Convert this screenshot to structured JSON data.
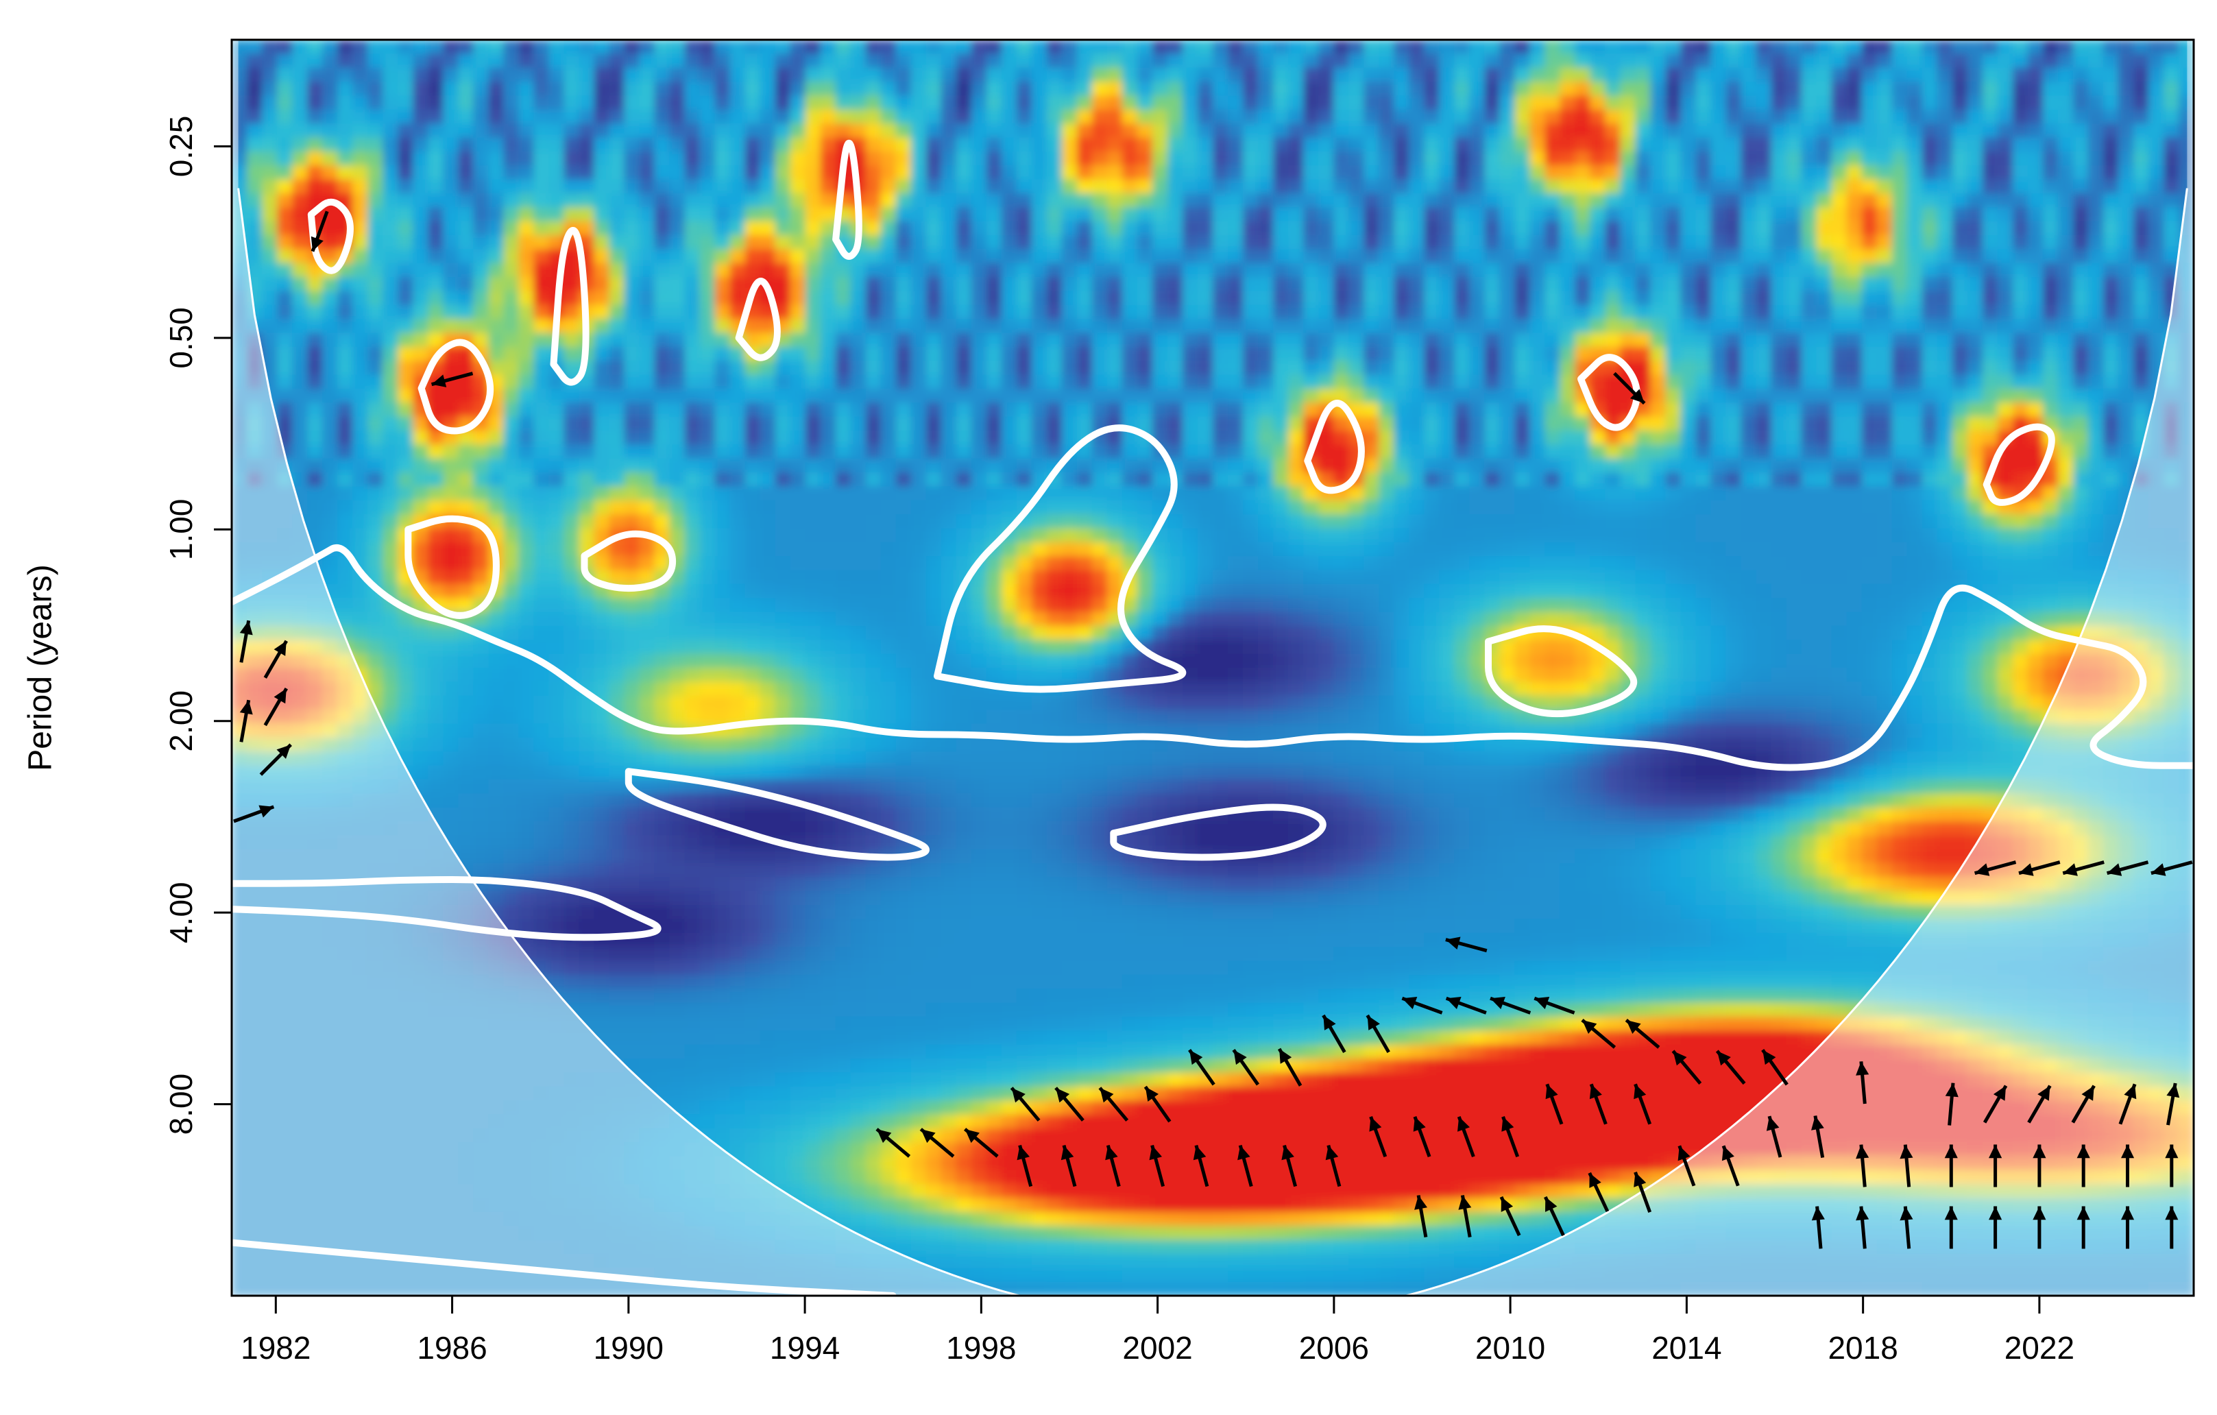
{
  "chart_data": {
    "type": "heatmap",
    "title": "",
    "xlabel": "",
    "ylabel": "Period (years)",
    "x_ticks": [
      1982,
      1986,
      1990,
      1994,
      1998,
      2002,
      2006,
      2010,
      2014,
      2018,
      2022
    ],
    "y_ticks": [
      {
        "period": 0.25,
        "label": "0.25"
      },
      {
        "period": 0.5,
        "label": "0.50"
      },
      {
        "period": 1,
        "label": "1.00"
      },
      {
        "period": 2,
        "label": "2.00"
      },
      {
        "period": 4,
        "label": "4.00"
      },
      {
        "period": 8,
        "label": "8.00"
      }
    ],
    "xlim": [
      1981,
      2025.5
    ],
    "ylim": [
      0.17,
      16
    ],
    "y_scale": "log2",
    "y_reversed": true,
    "colormap": [
      "#2b2c88",
      "#3c4fa6",
      "#17a5dd",
      "#31c1d6",
      "#7fd07c",
      "#ffe21a",
      "#ffa21c",
      "#f4531e",
      "#e7231e"
    ],
    "cone_color": "#ffffff",
    "outside_cone_fade": "rgba(255,255,255,0.45)",
    "significance_contour_color": "#ffffff",
    "arrow_color": "#000000",
    "hotspots": [
      {
        "t": 2007,
        "p": 9.0,
        "power": 1.0
      },
      {
        "t": 2002,
        "p": 10.0,
        "power": 0.95
      },
      {
        "t": 2012,
        "p": 8.0,
        "power": 0.9
      },
      {
        "t": 2016,
        "p": 7.0,
        "power": 0.75
      },
      {
        "t": 2022,
        "p": 9.0,
        "power": 0.7
      },
      {
        "t": 1982,
        "p": 1.8,
        "power": 0.75
      },
      {
        "t": 2020,
        "p": 3.2,
        "power": 0.75
      },
      {
        "t": 2000,
        "p": 1.25,
        "power": 0.8
      },
      {
        "t": 1986,
        "p": 0.6,
        "power": 0.95
      },
      {
        "t": 2012.5,
        "p": 0.6,
        "power": 0.9
      },
      {
        "t": 2021.5,
        "p": 0.78,
        "power": 0.9
      },
      {
        "t": 2006,
        "p": 0.75,
        "power": 0.85
      },
      {
        "t": 1986,
        "p": 1.1,
        "power": 0.8
      },
      {
        "t": 1990,
        "p": 1.05,
        "power": 0.65
      },
      {
        "t": 1983,
        "p": 0.32,
        "power": 0.9
      },
      {
        "t": 1988.5,
        "p": 0.4,
        "power": 0.9
      },
      {
        "t": 1993,
        "p": 0.42,
        "power": 0.85
      },
      {
        "t": 1995,
        "p": 0.27,
        "power": 0.85
      },
      {
        "t": 2001,
        "p": 0.25,
        "power": 0.75
      },
      {
        "t": 2011.5,
        "p": 0.24,
        "power": 0.85
      },
      {
        "t": 2018,
        "p": 0.33,
        "power": 0.6
      },
      {
        "t": 2011,
        "p": 1.6,
        "power": 0.55
      },
      {
        "t": 2023,
        "p": 1.7,
        "power": 0.65
      },
      {
        "t": 1992,
        "p": 1.9,
        "power": 0.45
      }
    ],
    "coldspots": [
      {
        "t": 1993,
        "p": 2.9,
        "power": 0.1
      },
      {
        "t": 2004,
        "p": 3.0,
        "power": 0.1
      },
      {
        "t": 1990,
        "p": 4.2,
        "power": 0.1
      },
      {
        "t": 2003,
        "p": 1.6,
        "power": 0.15
      },
      {
        "t": 2015,
        "p": 2.4,
        "power": 0.12
      }
    ],
    "arrows": [
      {
        "t": 1996,
        "p": 9.2,
        "angle": 140
      },
      {
        "t": 1997,
        "p": 9.2,
        "angle": 140
      },
      {
        "t": 1998,
        "p": 9.2,
        "angle": 140
      },
      {
        "t": 1999,
        "p": 8.0,
        "angle": 130
      },
      {
        "t": 2000,
        "p": 8.0,
        "angle": 130
      },
      {
        "t": 2001,
        "p": 8.0,
        "angle": 130
      },
      {
        "t": 2002,
        "p": 8.0,
        "angle": 125
      },
      {
        "t": 2003,
        "p": 7.0,
        "angle": 125
      },
      {
        "t": 2004,
        "p": 7.0,
        "angle": 125
      },
      {
        "t": 2005,
        "p": 7.0,
        "angle": 120
      },
      {
        "t": 2006,
        "p": 6.2,
        "angle": 120
      },
      {
        "t": 2007,
        "p": 6.2,
        "angle": 120
      },
      {
        "t": 2008,
        "p": 5.6,
        "angle": 160
      },
      {
        "t": 2009,
        "p": 5.6,
        "angle": 160
      },
      {
        "t": 2010,
        "p": 5.6,
        "angle": 160
      },
      {
        "t": 2011,
        "p": 5.6,
        "angle": 160
      },
      {
        "t": 2012,
        "p": 6.2,
        "angle": 140
      },
      {
        "t": 2013,
        "p": 6.2,
        "angle": 140
      },
      {
        "t": 2014,
        "p": 7.0,
        "angle": 130
      },
      {
        "t": 2015,
        "p": 7.0,
        "angle": 130
      },
      {
        "t": 2016,
        "p": 7.0,
        "angle": 125
      },
      {
        "t": 1999,
        "p": 10.0,
        "angle": 105
      },
      {
        "t": 2000,
        "p": 10.0,
        "angle": 105
      },
      {
        "t": 2001,
        "p": 10.0,
        "angle": 105
      },
      {
        "t": 2002,
        "p": 10.0,
        "angle": 105
      },
      {
        "t": 2003,
        "p": 10.0,
        "angle": 105
      },
      {
        "t": 2004,
        "p": 10.0,
        "angle": 105
      },
      {
        "t": 2005,
        "p": 10.0,
        "angle": 105
      },
      {
        "t": 2006,
        "p": 10.0,
        "angle": 105
      },
      {
        "t": 2007,
        "p": 9.0,
        "angle": 110
      },
      {
        "t": 2008,
        "p": 9.0,
        "angle": 110
      },
      {
        "t": 2009,
        "p": 9.0,
        "angle": 110
      },
      {
        "t": 2010,
        "p": 9.0,
        "angle": 110
      },
      {
        "t": 2011,
        "p": 8.0,
        "angle": 110
      },
      {
        "t": 2012,
        "p": 8.0,
        "angle": 110
      },
      {
        "t": 2013,
        "p": 8.0,
        "angle": 110
      },
      {
        "t": 2008,
        "p": 12.0,
        "angle": 100
      },
      {
        "t": 2009,
        "p": 12.0,
        "angle": 100
      },
      {
        "t": 2010,
        "p": 12.0,
        "angle": 115
      },
      {
        "t": 2011,
        "p": 12.0,
        "angle": 115
      },
      {
        "t": 2012,
        "p": 11.0,
        "angle": 115
      },
      {
        "t": 2013,
        "p": 11.0,
        "angle": 110
      },
      {
        "t": 2014,
        "p": 10.0,
        "angle": 110
      },
      {
        "t": 2015,
        "p": 10.0,
        "angle": 110
      },
      {
        "t": 2016,
        "p": 9.0,
        "angle": 105
      },
      {
        "t": 2017,
        "p": 9.0,
        "angle": 100
      },
      {
        "t": 2018,
        "p": 10.0,
        "angle": 95
      },
      {
        "t": 2019,
        "p": 10.0,
        "angle": 95
      },
      {
        "t": 2020,
        "p": 10.0,
        "angle": 90
      },
      {
        "t": 2021,
        "p": 10.0,
        "angle": 90
      },
      {
        "t": 2022,
        "p": 10.0,
        "angle": 90
      },
      {
        "t": 2023,
        "p": 10.0,
        "angle": 90
      },
      {
        "t": 2024,
        "p": 10.0,
        "angle": 90
      },
      {
        "t": 2025,
        "p": 10.0,
        "angle": 90
      },
      {
        "t": 2018,
        "p": 7.4,
        "angle": 95
      },
      {
        "t": 2020,
        "p": 8.0,
        "angle": 85
      },
      {
        "t": 2021,
        "p": 8.0,
        "angle": 60
      },
      {
        "t": 2022,
        "p": 8.0,
        "angle": 60
      },
      {
        "t": 2023,
        "p": 8.0,
        "angle": 60
      },
      {
        "t": 2024,
        "p": 8.0,
        "angle": 70
      },
      {
        "t": 2025,
        "p": 8.0,
        "angle": 80
      },
      {
        "t": 2017,
        "p": 12.5,
        "angle": 95
      },
      {
        "t": 2018,
        "p": 12.5,
        "angle": 95
      },
      {
        "t": 2019,
        "p": 12.5,
        "angle": 95
      },
      {
        "t": 2020,
        "p": 12.5,
        "angle": 90
      },
      {
        "t": 2021,
        "p": 12.5,
        "angle": 90
      },
      {
        "t": 2022,
        "p": 12.5,
        "angle": 90
      },
      {
        "t": 2023,
        "p": 12.5,
        "angle": 90
      },
      {
        "t": 2024,
        "p": 12.5,
        "angle": 90
      },
      {
        "t": 2025,
        "p": 12.5,
        "angle": 90
      },
      {
        "t": 2021,
        "p": 3.4,
        "angle": 195
      },
      {
        "t": 2022,
        "p": 3.4,
        "angle": 195
      },
      {
        "t": 2023,
        "p": 3.4,
        "angle": 195
      },
      {
        "t": 2024,
        "p": 3.4,
        "angle": 195
      },
      {
        "t": 2025,
        "p": 3.4,
        "angle": 195
      },
      {
        "t": 1982,
        "p": 1.6,
        "angle": 60
      },
      {
        "t": 1982,
        "p": 1.9,
        "angle": 60
      },
      {
        "t": 1982,
        "p": 2.3,
        "angle": 45
      },
      {
        "t": 1981.5,
        "p": 2.8,
        "angle": 20
      },
      {
        "t": 1981.3,
        "p": 1.5,
        "angle": 80
      },
      {
        "t": 1981.3,
        "p": 2.0,
        "angle": 80
      },
      {
        "t": 1986,
        "p": 0.58,
        "angle": 195
      },
      {
        "t": 1983,
        "p": 0.34,
        "angle": 250
      },
      {
        "t": 2012.7,
        "p": 0.6,
        "angle": -45
      },
      {
        "t": 2009,
        "p": 4.5,
        "angle": 165
      }
    ],
    "contours": [
      [
        [
          1981,
          1.3
        ],
        [
          1982,
          1.2
        ],
        [
          1983,
          1.1
        ],
        [
          1983.5,
          1.05
        ],
        [
          1984,
          1.2
        ],
        [
          1985,
          1.35
        ],
        [
          1986,
          1.4
        ],
        [
          1987,
          1.5
        ],
        [
          1988,
          1.6
        ],
        [
          1989,
          1.8
        ],
        [
          1990,
          2.0
        ],
        [
          1991,
          2.1
        ],
        [
          1993,
          2.0
        ],
        [
          1994.5,
          2.0
        ],
        [
          1996,
          2.1
        ],
        [
          1998,
          2.1
        ],
        [
          2000,
          2.15
        ],
        [
          2002,
          2.1
        ],
        [
          2004,
          2.2
        ],
        [
          2006,
          2.1
        ],
        [
          2008,
          2.15
        ],
        [
          2010,
          2.1
        ],
        [
          2012,
          2.15
        ],
        [
          2014,
          2.2
        ],
        [
          2016,
          2.4
        ],
        [
          2018,
          2.3
        ],
        [
          2019,
          1.8
        ],
        [
          2019.5,
          1.5
        ],
        [
          2020,
          1.2
        ],
        [
          2021,
          1.3
        ],
        [
          2022,
          1.45
        ],
        [
          2023,
          1.5
        ],
        [
          2024,
          1.55
        ],
        [
          2024.5,
          1.75
        ],
        [
          2023.8,
          2.0
        ],
        [
          2023,
          2.2
        ],
        [
          2024,
          2.35
        ],
        [
          2025.5,
          2.35
        ]
      ],
      [
        [
          1981,
          3.6
        ],
        [
          1983,
          3.6
        ],
        [
          1985,
          3.55
        ],
        [
          1987,
          3.55
        ],
        [
          1989,
          3.7
        ],
        [
          1990,
          4.0
        ],
        [
          1991,
          4.3
        ],
        [
          1989,
          4.4
        ],
        [
          1987,
          4.3
        ],
        [
          1985,
          4.1
        ],
        [
          1983,
          4.0
        ],
        [
          1981,
          3.95
        ]
      ],
      [
        [
          1990,
          2.4
        ],
        [
          1992,
          2.5
        ],
        [
          1994,
          2.7
        ],
        [
          1996,
          3.0
        ],
        [
          1997,
          3.2
        ],
        [
          1996,
          3.3
        ],
        [
          1994,
          3.2
        ],
        [
          1992,
          2.9
        ],
        [
          1990,
          2.6
        ],
        [
          1990,
          2.4
        ]
      ],
      [
        [
          2001,
          3.0
        ],
        [
          2003,
          2.8
        ],
        [
          2005,
          2.7
        ],
        [
          2006,
          2.9
        ],
        [
          2005,
          3.2
        ],
        [
          2003,
          3.3
        ],
        [
          2001,
          3.2
        ],
        [
          2001,
          3.0
        ]
      ],
      [
        [
          2009.5,
          1.5
        ],
        [
          2011,
          1.4
        ],
        [
          2012.5,
          1.6
        ],
        [
          2013,
          1.8
        ],
        [
          2011,
          2.0
        ],
        [
          2009.5,
          1.8
        ],
        [
          2009.5,
          1.5
        ]
      ],
      [
        [
          1997,
          1.7
        ],
        [
          1997.5,
          1.2
        ],
        [
          1999,
          0.95
        ],
        [
          2000,
          0.75
        ],
        [
          2001,
          0.68
        ],
        [
          2002,
          0.72
        ],
        [
          2002.5,
          0.85
        ],
        [
          2002,
          1.0
        ],
        [
          2001,
          1.3
        ],
        [
          2001.5,
          1.55
        ],
        [
          2003,
          1.7
        ],
        [
          2001,
          1.75
        ],
        [
          1999,
          1.8
        ],
        [
          1997,
          1.7
        ]
      ],
      [
        [
          1985,
          1.0
        ],
        [
          1986,
          0.95
        ],
        [
          1987,
          1.0
        ],
        [
          1987,
          1.3
        ],
        [
          1986,
          1.4
        ],
        [
          1985,
          1.2
        ],
        [
          1985,
          1.0
        ]
      ],
      [
        [
          1989,
          1.1
        ],
        [
          1990,
          1.0
        ],
        [
          1991,
          1.05
        ],
        [
          1991,
          1.2
        ],
        [
          1990,
          1.25
        ],
        [
          1989,
          1.2
        ],
        [
          1989,
          1.1
        ]
      ],
      [
        [
          1985.3,
          0.6
        ],
        [
          1985.7,
          0.52
        ],
        [
          1986.4,
          0.5
        ],
        [
          1987,
          0.6
        ],
        [
          1986.5,
          0.7
        ],
        [
          1985.6,
          0.7
        ],
        [
          1985.3,
          0.6
        ]
      ],
      [
        [
          2005.4,
          0.78
        ],
        [
          2006,
          0.6
        ],
        [
          2006.7,
          0.72
        ],
        [
          2006.5,
          0.85
        ],
        [
          2005.7,
          0.88
        ],
        [
          2005.4,
          0.78
        ]
      ],
      [
        [
          2011.6,
          0.58
        ],
        [
          2012.3,
          0.52
        ],
        [
          2013,
          0.6
        ],
        [
          2012.6,
          0.7
        ],
        [
          2012,
          0.68
        ],
        [
          2011.6,
          0.58
        ]
      ],
      [
        [
          2020.8,
          0.85
        ],
        [
          2021.2,
          0.72
        ],
        [
          2022,
          0.68
        ],
        [
          2022.4,
          0.72
        ],
        [
          2021.8,
          0.88
        ],
        [
          2021,
          0.92
        ],
        [
          2020.8,
          0.85
        ]
      ],
      [
        [
          1982.8,
          0.32
        ],
        [
          1983.3,
          0.3
        ],
        [
          1983.8,
          0.33
        ],
        [
          1983.4,
          0.4
        ],
        [
          1982.9,
          0.38
        ],
        [
          1982.8,
          0.32
        ]
      ],
      [
        [
          1988.3,
          0.55
        ],
        [
          1988.5,
          0.35
        ],
        [
          1988.9,
          0.33
        ],
        [
          1989.1,
          0.55
        ],
        [
          1988.7,
          0.6
        ],
        [
          1988.3,
          0.55
        ]
      ],
      [
        [
          1992.5,
          0.5
        ],
        [
          1993,
          0.38
        ],
        [
          1993.5,
          0.5
        ],
        [
          1993,
          0.55
        ],
        [
          1992.5,
          0.5
        ]
      ],
      [
        [
          1994.7,
          0.35
        ],
        [
          1995,
          0.22
        ],
        [
          1995.3,
          0.35
        ],
        [
          1995,
          0.38
        ],
        [
          1994.7,
          0.35
        ]
      ],
      [
        [
          1981,
          13.2
        ],
        [
          1984,
          13.8
        ],
        [
          1988,
          14.6
        ],
        [
          1992,
          15.5
        ],
        [
          1996,
          16.0
        ]
      ]
    ]
  }
}
